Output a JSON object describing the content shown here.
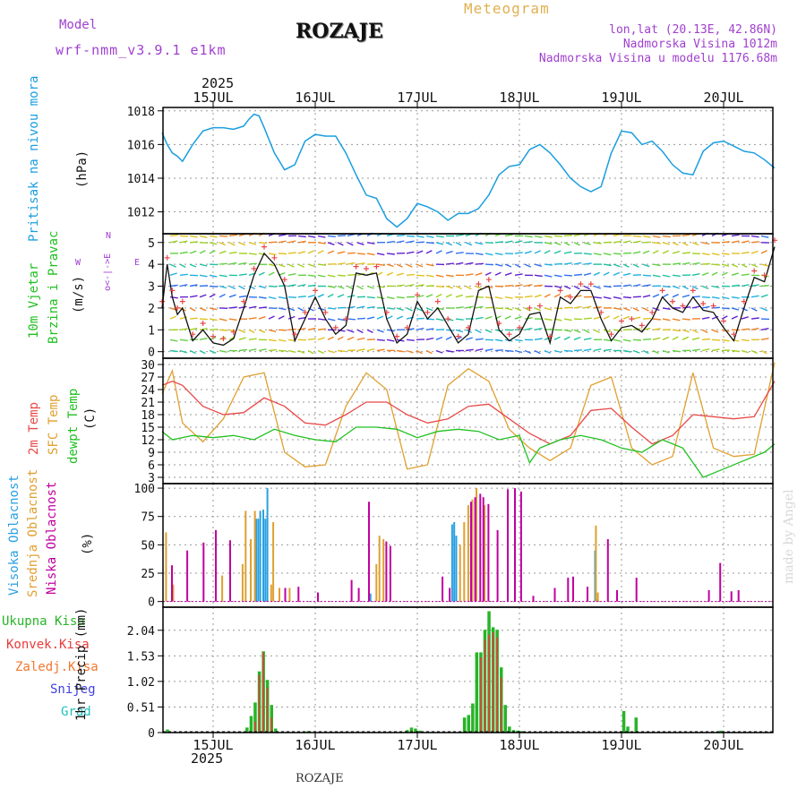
{
  "header": {
    "model_label": "Model",
    "model_name": "wrf-nmm_v3.9.1 e1km",
    "station": "ROZAJE",
    "meteogram": "Meteogram",
    "coords": "lon,lat (20.13E, 42.86N)",
    "altitude": "Nadmorska Visina 1012m",
    "model_altitude": "Nadmorska Visina u modelu 1176.68m",
    "year_top": "2025",
    "year_bottom": "2025",
    "footer_station": "ROZAJE",
    "credit": "made by Angel"
  },
  "colors": {
    "pressure": "#1a9ee0",
    "temp2m": "#e84848",
    "sfc": "#e0a030",
    "dewpt": "#20c020",
    "high_cloud": "#2aa0e0",
    "mid_cloud": "#e0a030",
    "low_cloud": "#c000a0",
    "total_precip": "#28b428",
    "conv_precip": "#e83a3a",
    "frozen_precip": "#f07830",
    "snow": "#4040e0",
    "graupel": "#20c0c0",
    "purple_text": "#a040d0",
    "orange_text": "#e0b050"
  },
  "chart_data": [
    {
      "type": "line",
      "id": "pressure",
      "ylabel_main": "Pritisak na nivou mora",
      "ylabel_unit": "(hPa)",
      "yticks": [
        1012,
        1014,
        1016,
        1018
      ],
      "ylim": [
        1010.7,
        1018.2
      ],
      "x_days": [
        "15JUL",
        "16JUL",
        "17JUL",
        "18JUL",
        "19JUL",
        "20JUL"
      ],
      "series": [
        {
          "t": [
            0,
            0.05,
            0.1,
            0.15,
            0.2,
            0.25,
            0.3,
            0.4,
            0.5,
            0.6,
            0.7,
            0.75,
            0.8,
            0.85,
            0.9,
            0.95,
            1.0,
            1.1,
            1.2,
            1.3,
            1.4,
            1.5,
            1.6,
            1.7,
            1.8,
            1.9,
            2.0,
            2.1,
            2.2,
            2.3,
            2.4,
            2.5,
            2.6,
            2.7,
            2.8,
            2.9,
            3.0,
            3.1,
            3.2,
            3.3,
            3.4,
            3.5,
            3.6,
            3.7,
            3.8,
            3.9,
            4.0,
            4.1,
            4.2,
            4.3,
            4.4,
            4.5,
            4.6,
            4.7,
            4.8,
            4.9,
            5.0,
            5.1,
            5.2,
            5.3,
            5.4,
            5.5,
            5.6,
            5.7,
            5.8,
            5.9,
            6.0
          ],
          "values": [
            1016.7,
            1016.0,
            1015.5,
            1015.3,
            1015.0,
            1015.5,
            1016.0,
            1016.8,
            1017.0,
            1017.0,
            1016.9,
            1017.0,
            1017.1,
            1017.5,
            1017.8,
            1017.7,
            1017.0,
            1015.5,
            1014.5,
            1014.8,
            1016.2,
            1016.6,
            1016.5,
            1016.5,
            1015.5,
            1014.2,
            1013.0,
            1012.8,
            1011.6,
            1011.1,
            1011.6,
            1012.5,
            1012.3,
            1012.0,
            1011.5,
            1011.9,
            1011.9,
            1012.2,
            1013.0,
            1014.2,
            1014.7,
            1014.8,
            1015.7,
            1016.0,
            1015.5,
            1014.8,
            1014.0,
            1013.5,
            1013.2,
            1013.5,
            1015.5,
            1016.8,
            1016.7,
            1016.0,
            1016.2,
            1015.6,
            1014.8,
            1014.3,
            1014.2,
            1015.6,
            1016.1,
            1016.2,
            1015.9,
            1015.6,
            1015.5,
            1015.1,
            1014.6
          ]
        }
      ]
    },
    {
      "type": "line",
      "id": "wind",
      "ylabel_main": "10m Vjetar",
      "ylabel_sub": "Brzina i Pravac",
      "ylabel_unit": "(m/s)",
      "compass": "ο<-|->E",
      "compass_w": "W",
      "compass_e": "E",
      "compass_n": "N",
      "yticks": [
        0,
        1,
        2,
        3,
        4,
        5
      ],
      "ylim": [
        -0.3,
        5.4
      ],
      "series": [
        {
          "t": [
            0,
            0.05,
            0.1,
            0.15,
            0.2,
            0.3,
            0.4,
            0.5,
            0.6,
            0.7,
            0.8,
            0.9,
            1.0,
            1.1,
            1.2,
            1.3,
            1.4,
            1.5,
            1.6,
            1.7,
            1.8,
            1.9,
            2.0,
            2.1,
            2.2,
            2.3,
            2.4,
            2.5,
            2.6,
            2.7,
            2.8,
            2.9,
            3.0,
            3.1,
            3.2,
            3.3,
            3.4,
            3.5,
            3.6,
            3.7,
            3.8,
            3.9,
            4.0,
            4.1,
            4.2,
            4.3,
            4.4,
            4.5,
            4.6,
            4.7,
            4.8,
            4.9,
            5.0,
            5.1,
            5.2,
            5.3,
            5.4,
            5.5,
            5.6,
            5.7,
            5.8,
            5.9,
            6.0
          ],
          "values": [
            2.0,
            4.0,
            2.5,
            1.7,
            2.0,
            0.5,
            1.0,
            0.4,
            0.3,
            0.6,
            2.0,
            3.5,
            4.5,
            4.0,
            3.0,
            0.5,
            1.5,
            2.5,
            1.5,
            0.8,
            1.2,
            3.6,
            3.5,
            3.6,
            1.5,
            0.4,
            0.8,
            2.3,
            1.5,
            2.0,
            1.2,
            0.4,
            0.8,
            2.8,
            3.0,
            1.0,
            0.5,
            0.8,
            1.7,
            1.8,
            0.4,
            2.5,
            2.2,
            2.8,
            2.8,
            1.5,
            0.5,
            1.1,
            1.2,
            0.9,
            1.5,
            2.5,
            2.0,
            1.8,
            2.5,
            1.9,
            1.8,
            1.1,
            0.5,
            2.0,
            3.4,
            3.2,
            4.8
          ]
        }
      ]
    },
    {
      "type": "line",
      "id": "temperature",
      "ylabel_1": "2m Temp",
      "ylabel_2": "SFC Temp",
      "ylabel_3": "dewpt Temp",
      "ylabel_unit": "(C)",
      "yticks": [
        3,
        6,
        9,
        12,
        15,
        18,
        21,
        24,
        27,
        30
      ],
      "ylim": [
        1.5,
        31.5
      ],
      "series": [
        {
          "name": "2m Temp",
          "t": [
            0,
            0.1,
            0.2,
            0.4,
            0.6,
            0.8,
            1.0,
            1.2,
            1.4,
            1.6,
            1.8,
            2.0,
            2.2,
            2.4,
            2.6,
            2.8,
            3.0,
            3.2,
            3.4,
            3.6,
            3.8,
            4.0,
            4.2,
            4.4,
            4.6,
            4.8,
            5.0,
            5.2,
            5.4,
            5.6,
            5.8,
            6.0
          ],
          "values": [
            25.0,
            26.0,
            25.0,
            20.0,
            18.0,
            18.5,
            22.0,
            20.0,
            16.0,
            15.5,
            18.0,
            21.0,
            21.0,
            18.0,
            16.0,
            17.0,
            20.0,
            20.5,
            17.0,
            13.5,
            11.0,
            13.0,
            19.0,
            19.5,
            15.0,
            11.0,
            13.0,
            18.0,
            17.5,
            17.0,
            17.5,
            26.0
          ]
        },
        {
          "name": "SFC Temp",
          "t": [
            0,
            0.1,
            0.2,
            0.4,
            0.6,
            0.8,
            1.0,
            1.2,
            1.4,
            1.6,
            1.8,
            2.0,
            2.2,
            2.4,
            2.6,
            2.8,
            3.0,
            3.2,
            3.4,
            3.6,
            3.8,
            4.0,
            4.2,
            4.4,
            4.6,
            4.8,
            5.0,
            5.2,
            5.4,
            5.6,
            5.8,
            6.0
          ],
          "values": [
            23.0,
            28.5,
            16.0,
            11.5,
            17.0,
            27.0,
            28.0,
            9.0,
            5.5,
            6.0,
            20.0,
            28.0,
            24.0,
            5.0,
            6.0,
            25.0,
            29.0,
            26.0,
            14.5,
            10.0,
            7.0,
            10.0,
            25.0,
            27.0,
            10.0,
            6.0,
            8.0,
            28.0,
            10.0,
            8.0,
            8.5,
            30.5
          ]
        },
        {
          "name": "dewpt Temp",
          "t": [
            0,
            0.1,
            0.3,
            0.5,
            0.7,
            0.9,
            1.1,
            1.3,
            1.5,
            1.7,
            1.9,
            2.1,
            2.3,
            2.5,
            2.7,
            2.9,
            3.1,
            3.3,
            3.5,
            3.6,
            3.7,
            3.9,
            4.1,
            4.3,
            4.5,
            4.7,
            4.9,
            5.1,
            5.3,
            5.5,
            5.7,
            5.9,
            6.0
          ],
          "values": [
            14.0,
            12.0,
            13.0,
            12.5,
            13.0,
            12.0,
            14.5,
            13.0,
            12.0,
            11.5,
            15.0,
            15.0,
            14.5,
            12.5,
            14.0,
            14.5,
            14.0,
            12.0,
            13.0,
            6.5,
            10.0,
            12.0,
            13.0,
            12.0,
            10.0,
            9.0,
            12.0,
            10.0,
            3.0,
            5.0,
            7.0,
            9.0,
            11.0
          ]
        }
      ]
    },
    {
      "type": "bar",
      "id": "clouds",
      "ylabel_1": "Visoka Oblacnost",
      "ylabel_2": "Srednja Oblacnost",
      "ylabel_3": "Niska Oblacnost",
      "ylabel_unit": "(%)",
      "yticks": [
        0,
        25,
        50,
        75,
        100
      ],
      "ylim": [
        -5,
        104
      ],
      "series": [
        {
          "name": "Visoka Oblacnost",
          "t": [
            0.93,
            0.95,
            0.97,
            1.0,
            1.02,
            1.04,
            2.05,
            2.85,
            2.87,
            2.89,
            4.25,
            4.27
          ],
          "values": [
            73,
            73,
            80,
            81,
            73,
            100,
            7,
            68,
            70,
            58,
            45,
            2
          ]
        },
        {
          "name": "Srednja Oblacnost",
          "t": [
            0.03,
            0.1,
            0.58,
            0.78,
            0.81,
            0.86,
            0.9,
            1.06,
            1.08,
            1.14,
            1.24,
            2.09,
            2.12,
            2.16,
            2.91,
            2.95,
            2.99,
            3.03,
            3.07,
            3.15,
            4.24,
            4.26
          ],
          "values": [
            61,
            15,
            23,
            33,
            80,
            55,
            80,
            15,
            70,
            12,
            12,
            33,
            58,
            55,
            50,
            70,
            85,
            90,
            100,
            85,
            67,
            8
          ]
        },
        {
          "name": "Niska Oblacnost",
          "t": [
            0.07,
            0.22,
            0.38,
            0.5,
            0.64,
            1.18,
            1.31,
            1.5,
            1.83,
            1.9,
            2.0,
            2.17,
            2.21,
            2.72,
            2.79,
            3.0,
            3.04,
            3.09,
            3.12,
            3.17,
            3.26,
            3.36,
            3.43,
            3.49,
            3.61,
            3.82,
            3.95,
            4.0,
            4.14,
            4.34,
            4.43,
            4.62,
            5.33,
            5.44,
            5.55,
            5.62
          ],
          "values": [
            32,
            45,
            52,
            63,
            54,
            12,
            13,
            8,
            19,
            12,
            88,
            53,
            49,
            22,
            12,
            88,
            92,
            95,
            92,
            86,
            63,
            99,
            100,
            97,
            5,
            12,
            21,
            22,
            13,
            55,
            10,
            21,
            10,
            34,
            9,
            10
          ]
        }
      ]
    },
    {
      "type": "bar",
      "id": "precip",
      "ylabel_1": "Ukupna Kisa",
      "ylabel_2": "Konvek.Kisa",
      "ylabel_3": "Zaledj.Kisa",
      "ylabel_4": "Snijeg",
      "ylabel_5": "Grad",
      "ylabel_unit": "1hr Precip (mm)",
      "yticks": [
        0,
        0.51,
        1.02,
        1.53,
        2.04
      ],
      "ylim": [
        0,
        2.5
      ],
      "x_days": [
        "15JUL",
        "16JUL",
        "17JUL",
        "18JUL",
        "19JUL",
        "20JUL"
      ],
      "series": [
        {
          "name": "Ukupna Kisa",
          "t": [
            0.05,
            0.83,
            0.87,
            0.91,
            0.95,
            0.99,
            1.03,
            1.07,
            1.11,
            1.43,
            2.4,
            2.44,
            2.48,
            2.52,
            2.96,
            3.0,
            3.04,
            3.08,
            3.12,
            3.16,
            3.2,
            3.24,
            3.28,
            3.32,
            3.36,
            3.4,
            3.44,
            3.48,
            3.52,
            4.52,
            4.56,
            4.64,
            5.47
          ],
          "values": [
            0.06,
            0.1,
            0.33,
            0.6,
            1.22,
            1.62,
            1.05,
            0.55,
            0.08,
            0.03,
            0.05,
            0.1,
            0.08,
            0.04,
            0.3,
            0.35,
            0.58,
            1.6,
            1.6,
            2.05,
            2.42,
            2.1,
            2.05,
            1.3,
            0.55,
            0.12,
            0.05,
            0.04,
            0.03,
            0.43,
            0.12,
            0.3,
            0.04
          ]
        },
        {
          "name": "Konvek.Kisa",
          "t": [
            0.91,
            0.95,
            0.99,
            1.03,
            1.07,
            3.12,
            3.16,
            3.2,
            3.24,
            3.28,
            3.32
          ],
          "values": [
            0.22,
            1.15,
            1.6,
            0.9,
            0.3,
            1.5,
            1.85,
            1.95,
            2.0,
            1.9,
            1.1
          ]
        }
      ]
    }
  ]
}
